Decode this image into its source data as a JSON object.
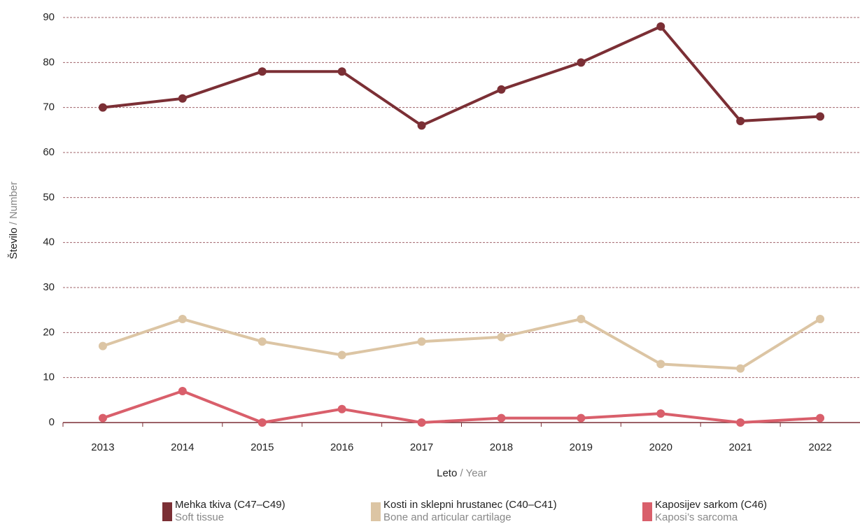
{
  "chart_data": {
    "type": "line",
    "ylabel": {
      "main": "Število",
      "sub": "/ Number"
    },
    "xlabel": {
      "main": "Leto",
      "sub": "/ Year"
    },
    "categories": [
      "2013",
      "2014",
      "2015",
      "2016",
      "2017",
      "2018",
      "2019",
      "2020",
      "2021",
      "2022"
    ],
    "series": [
      {
        "name": "Mehka tkiva (C47–C49)",
        "name_en": "Soft tissue",
        "color": "#7b2f35",
        "values": [
          70,
          72,
          78,
          78,
          66,
          74,
          80,
          88,
          67,
          68
        ]
      },
      {
        "name": "Kosti in sklepni hrustanec (C40–C41)",
        "name_en": "Bone and articular cartilage",
        "color": "#dcc5a4",
        "values": [
          17,
          23,
          18,
          15,
          18,
          19,
          23,
          13,
          12,
          23
        ]
      },
      {
        "name": "Kaposijev sarkom (C46)",
        "name_en": "Kaposi’s sarcoma",
        "color": "#d95f6b",
        "values": [
          1,
          7,
          0,
          3,
          0,
          1,
          1,
          2,
          0,
          1
        ]
      }
    ],
    "ylim": [
      0,
      90
    ],
    "yticks": [
      0,
      10,
      20,
      30,
      40,
      50,
      60,
      70,
      80,
      90
    ],
    "grid": true
  }
}
